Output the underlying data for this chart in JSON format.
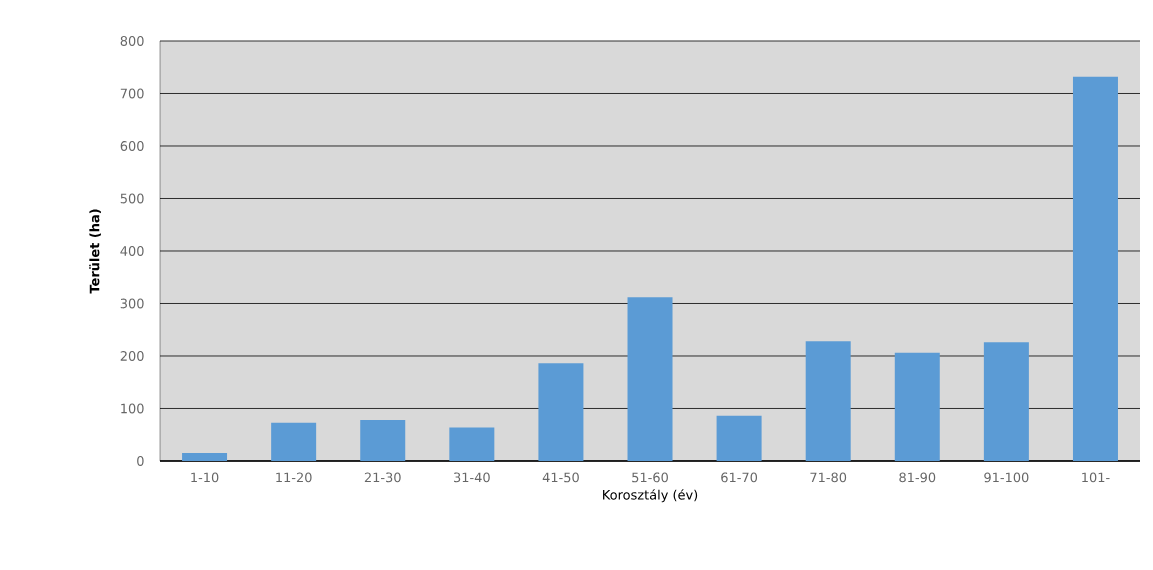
{
  "chart_data": {
    "type": "bar",
    "xlabel": "Korosztály (év)",
    "ylabel": "Terület (ha)",
    "categories": [
      "1-10",
      "11-20",
      "21-30",
      "31-40",
      "41-50",
      "51-60",
      "61-70",
      "71-80",
      "81-90",
      "91-100",
      "101-"
    ],
    "values": [
      15,
      73,
      78,
      64,
      186,
      312,
      86,
      228,
      206,
      226,
      732
    ],
    "color": "#5b9bd5",
    "ylim": [
      0,
      800
    ],
    "yticks": [
      0,
      100,
      200,
      300,
      400,
      500,
      600,
      700,
      800
    ],
    "grid": "y"
  }
}
